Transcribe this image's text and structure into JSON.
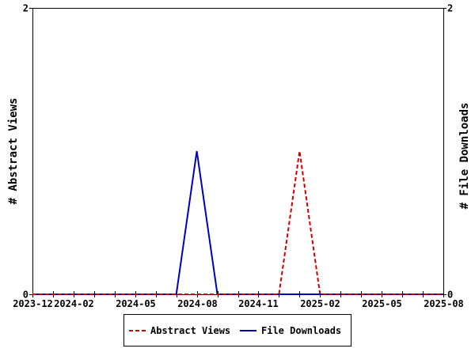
{
  "chart_data": {
    "type": "line",
    "title": "",
    "xlabel": "",
    "ylabel_left": "# Abstract Views",
    "ylabel_right": "# File Downloads",
    "ylim": [
      0,
      2
    ],
    "y_ticks": [
      "0",
      "2"
    ],
    "x": [
      "2023-12",
      "2024-01",
      "2024-02",
      "2024-03",
      "2024-04",
      "2024-05",
      "2024-06",
      "2024-07",
      "2024-08",
      "2024-09",
      "2024-10",
      "2024-11",
      "2024-12",
      "2025-01",
      "2025-02",
      "2025-03",
      "2025-04",
      "2025-05",
      "2025-06",
      "2025-07",
      "2025-08"
    ],
    "x_tick_labels": [
      "2023-12",
      "2024-02",
      "2024-05",
      "2024-08",
      "2024-11",
      "2025-02",
      "2025-05",
      "2025-08"
    ],
    "series": [
      {
        "name": "Abstract Views",
        "color": "#cc0000",
        "style": "dashed",
        "axis": "left",
        "values": [
          0,
          0,
          0,
          0,
          0,
          0,
          0,
          0,
          0,
          0,
          0,
          0,
          0,
          1,
          0,
          0,
          0,
          0,
          0,
          0,
          0
        ]
      },
      {
        "name": "File Downloads",
        "color": "#0000bb",
        "style": "solid",
        "axis": "right",
        "values": [
          0,
          0,
          0,
          0,
          0,
          0,
          0,
          0,
          1,
          0,
          0,
          0,
          0,
          0,
          0,
          0,
          0,
          0,
          0,
          0,
          0
        ]
      }
    ],
    "grid": false,
    "legend": "bottom-center"
  }
}
